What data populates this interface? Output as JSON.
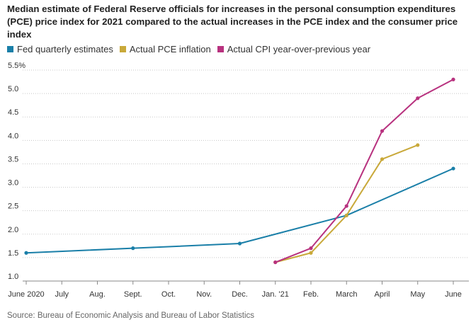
{
  "title": "Median estimate of Federal Reserve officials for increases in the personal consumption expenditures (PCE) price index for 2021 compared to the actual increases in the PCE index and the consumer price index",
  "source": "Source: Bureau of Economic Analysis and Bureau of Labor Statistics",
  "chart_data": {
    "type": "line",
    "title": "Median estimate of Federal Reserve officials for increases in the personal consumption expenditures (PCE) price index for 2021 compared to the actual increases in the PCE index and the consumer price index",
    "xlabel": "",
    "ylabel": "",
    "x_ticks": [
      "June 2020",
      "July",
      "Aug.",
      "Sept.",
      "Oct.",
      "Nov.",
      "Dec.",
      "Jan. '21",
      "Feb.",
      "March",
      "April",
      "May",
      "June"
    ],
    "y_ticks": [
      "5.5%",
      "5.0",
      "4.5",
      "4.0",
      "3.5",
      "3.0",
      "2.5",
      "2.0",
      "1.5",
      "1.0"
    ],
    "y_tick_values": [
      5.5,
      5.0,
      4.5,
      4.0,
      3.5,
      3.0,
      2.5,
      2.0,
      1.5,
      1.0
    ],
    "ylim": [
      1.0,
      5.5
    ],
    "grid": "horizontal dotted",
    "legend_position": "top-left",
    "series": [
      {
        "name": "Fed quarterly estimates",
        "color": "#1a7fa8",
        "points": [
          [
            "June 2020",
            1.6
          ],
          [
            "Sept.",
            1.7
          ],
          [
            "Dec.",
            1.8
          ],
          [
            "March",
            2.4
          ],
          [
            "June",
            3.4
          ]
        ]
      },
      {
        "name": "Actual PCE inflation",
        "color": "#c9a93a",
        "points": [
          [
            "Jan. '21",
            1.4
          ],
          [
            "Feb.",
            1.6
          ],
          [
            "March",
            2.4
          ],
          [
            "April",
            3.6
          ],
          [
            "May",
            3.9
          ]
        ]
      },
      {
        "name": "Actual CPI year-over-previous year",
        "color": "#b8327f",
        "points": [
          [
            "Jan. '21",
            1.4
          ],
          [
            "Feb.",
            1.7
          ],
          [
            "March",
            2.6
          ],
          [
            "April",
            4.2
          ],
          [
            "May",
            4.9
          ],
          [
            "June",
            5.3
          ]
        ]
      }
    ]
  }
}
